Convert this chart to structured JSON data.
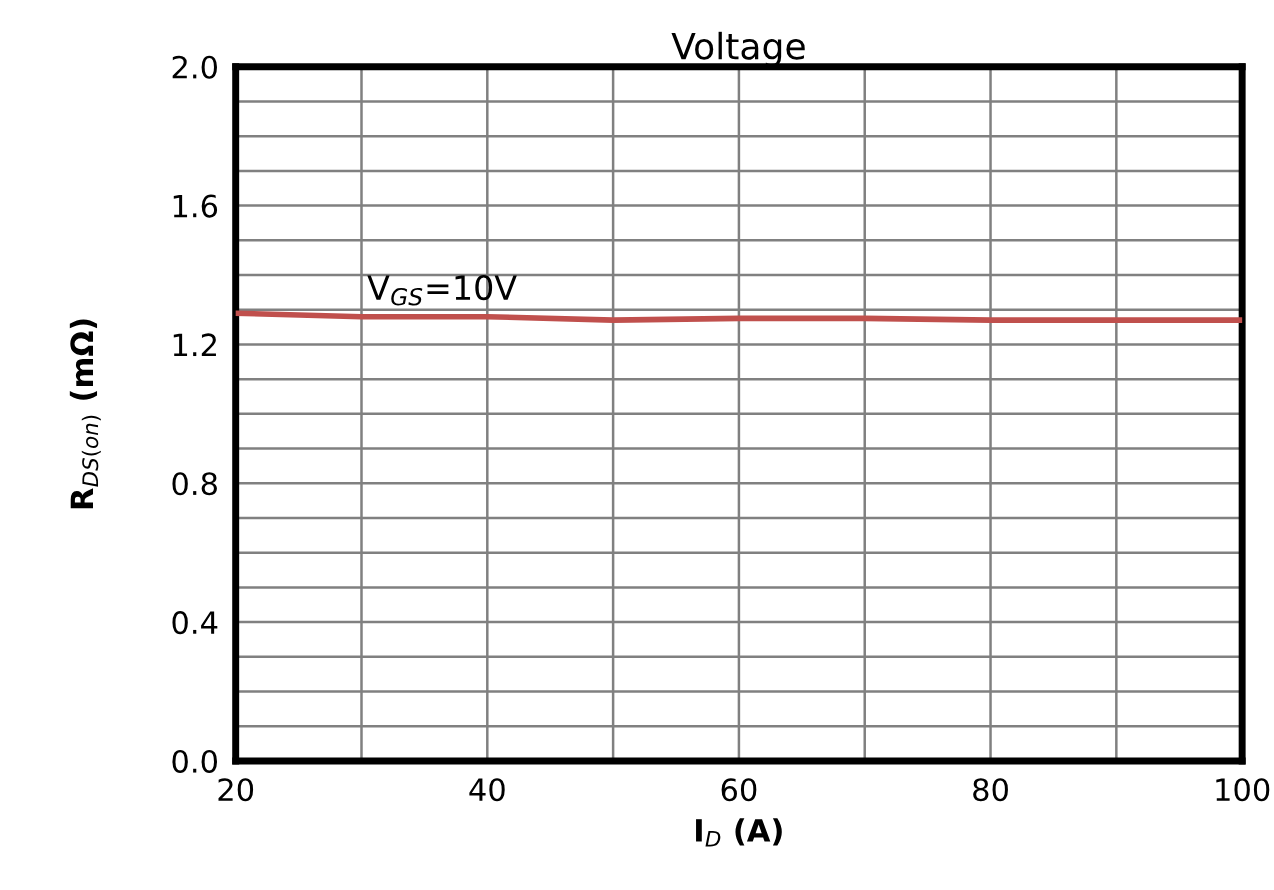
{
  "chart_data": {
    "type": "line",
    "title": "Voltage",
    "xlabel": "I$_{D}$ (A)",
    "ylabel": "R$_{DS(on)}$ (mΩ)",
    "x": [
      20,
      30,
      40,
      50,
      60,
      70,
      80,
      90,
      100
    ],
    "series": [
      {
        "color": "#c0504d",
        "values": [
          1.29,
          1.28,
          1.28,
          1.27,
          1.275,
          1.275,
          1.27,
          1.27,
          1.27
        ]
      }
    ],
    "xlim": [
      20,
      100
    ],
    "xticks": [
      20,
      {
        "value": 30,
        "label": null
      },
      40,
      {
        "value": 50,
        "label": null
      },
      60,
      {
        "value": 70,
        "label": null
      },
      80,
      {
        "value": 90,
        "label": null
      },
      100
    ],
    "ylim": [
      0,
      2.0
    ],
    "yticks": [
      {
        "value": 0,
        "label": "0.0"
      },
      {
        "value": 0.1,
        "label": null
      },
      {
        "value": 0.2,
        "label": null
      },
      {
        "value": 0.3,
        "label": null
      },
      0.4,
      {
        "value": 0.5,
        "label": null
      },
      {
        "value": 0.6,
        "label": null
      },
      {
        "value": 0.7,
        "label": null
      },
      0.8,
      {
        "value": 0.9,
        "label": null
      },
      {
        "value": 1.0,
        "label": null
      },
      {
        "value": 1.1,
        "label": null
      },
      1.2,
      {
        "value": 1.3,
        "label": null
      },
      {
        "value": 1.4,
        "label": null
      },
      {
        "value": 1.5,
        "label": null
      },
      1.6,
      {
        "value": 1.7,
        "label": null
      },
      {
        "value": 1.8,
        "label": null
      },
      {
        "value": 1.9,
        "label": null
      },
      {
        "value": 2.0,
        "label": "2.0"
      }
    ],
    "grid": true,
    "marker": "none",
    "line_style": "solid",
    "annotations": [
      {
        "text": "V$_{GS}$=10V",
        "x": 30,
        "y": 1.28
      }
    ]
  }
}
